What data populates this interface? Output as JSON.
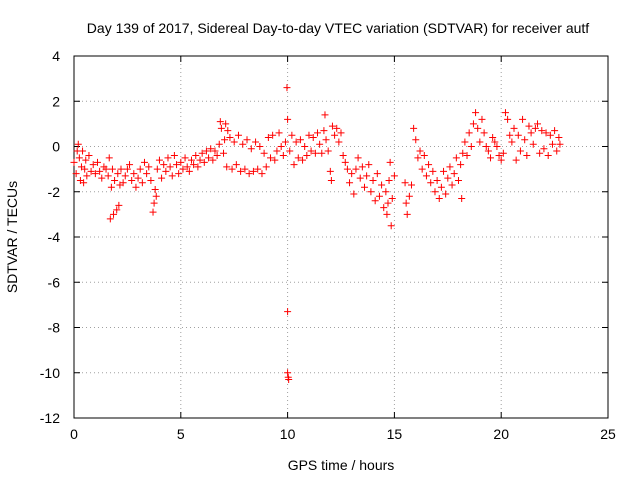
{
  "chart_data": {
    "type": "scatter",
    "title": "Day 139 of 2017, Sidereal Day-to-day VTEC variation (SDTVAR) for receiver autf",
    "xlabel": "GPS time / hours",
    "ylabel": "SDTVAR / TECUs",
    "xlim": [
      0,
      25
    ],
    "ylim": [
      -12,
      4
    ],
    "xticks": [
      0,
      5,
      10,
      15,
      20,
      25
    ],
    "yticks": [
      -12,
      -10,
      -8,
      -6,
      -4,
      -2,
      0,
      2,
      4
    ],
    "grid": true,
    "marker": "+",
    "color": "#ff0000",
    "series": [
      {
        "name": "SDTVAR",
        "points": [
          [
            0.0,
            -0.7
          ],
          [
            0.1,
            -1.2
          ],
          [
            0.15,
            -0.2
          ],
          [
            0.2,
            0.1
          ],
          [
            0.25,
            -0.5
          ],
          [
            0.3,
            -1.5
          ],
          [
            0.35,
            -0.9
          ],
          [
            0.4,
            -0.2
          ],
          [
            0.45,
            -1.6
          ],
          [
            0.5,
            -1.0
          ],
          [
            0.55,
            -0.6
          ],
          [
            0.6,
            -1.3
          ],
          [
            0.7,
            -0.4
          ],
          [
            0.8,
            -1.1
          ],
          [
            0.9,
            -0.8
          ],
          [
            1.0,
            -1.2
          ],
          [
            1.1,
            -0.7
          ],
          [
            1.2,
            -1.1
          ],
          [
            1.3,
            -1.4
          ],
          [
            1.4,
            -0.9
          ],
          [
            1.5,
            -1.0
          ],
          [
            1.6,
            -1.3
          ],
          [
            1.65,
            -0.5
          ],
          [
            1.7,
            -3.2
          ],
          [
            1.75,
            -1.8
          ],
          [
            1.8,
            -1.0
          ],
          [
            1.85,
            -3.0
          ],
          [
            1.9,
            -1.5
          ],
          [
            2.0,
            -2.8
          ],
          [
            2.05,
            -1.2
          ],
          [
            2.1,
            -2.6
          ],
          [
            2.15,
            -1.7
          ],
          [
            2.2,
            -1.0
          ],
          [
            2.3,
            -1.6
          ],
          [
            2.4,
            -1.3
          ],
          [
            2.5,
            -1.0
          ],
          [
            2.6,
            -0.8
          ],
          [
            2.7,
            -1.5
          ],
          [
            2.8,
            -1.2
          ],
          [
            2.9,
            -1.8
          ],
          [
            3.0,
            -1.4
          ],
          [
            3.1,
            -1.0
          ],
          [
            3.2,
            -1.6
          ],
          [
            3.3,
            -0.7
          ],
          [
            3.4,
            -1.2
          ],
          [
            3.5,
            -0.9
          ],
          [
            3.6,
            -1.5
          ],
          [
            3.7,
            -2.9
          ],
          [
            3.75,
            -2.5
          ],
          [
            3.8,
            -1.9
          ],
          [
            3.85,
            -2.2
          ],
          [
            3.9,
            -1.0
          ],
          [
            4.0,
            -0.6
          ],
          [
            4.1,
            -1.4
          ],
          [
            4.2,
            -0.8
          ],
          [
            4.3,
            -1.1
          ],
          [
            4.4,
            -0.5
          ],
          [
            4.5,
            -0.9
          ],
          [
            4.6,
            -1.3
          ],
          [
            4.7,
            -0.4
          ],
          [
            4.8,
            -0.8
          ],
          [
            4.9,
            -1.2
          ],
          [
            5.0,
            -0.7
          ],
          [
            5.1,
            -1.0
          ],
          [
            5.2,
            -0.5
          ],
          [
            5.3,
            -0.9
          ],
          [
            5.4,
            -1.1
          ],
          [
            5.5,
            -0.6
          ],
          [
            5.6,
            -0.8
          ],
          [
            5.7,
            -0.4
          ],
          [
            5.8,
            -0.9
          ],
          [
            5.9,
            -0.6
          ],
          [
            6.0,
            -0.3
          ],
          [
            6.1,
            -0.7
          ],
          [
            6.2,
            -0.2
          ],
          [
            6.3,
            -0.5
          ],
          [
            6.4,
            -0.1
          ],
          [
            6.5,
            -0.6
          ],
          [
            6.6,
            -0.2
          ],
          [
            6.7,
            -0.4
          ],
          [
            6.8,
            0.1
          ],
          [
            6.85,
            1.1
          ],
          [
            6.9,
            0.8
          ],
          [
            7.0,
            -0.3
          ],
          [
            7.05,
            0.3
          ],
          [
            7.1,
            1.0
          ],
          [
            7.15,
            -0.9
          ],
          [
            7.2,
            0.7
          ],
          [
            7.3,
            0.4
          ],
          [
            7.4,
            -1.0
          ],
          [
            7.5,
            0.2
          ],
          [
            7.6,
            -0.8
          ],
          [
            7.7,
            0.5
          ],
          [
            7.8,
            -1.1
          ],
          [
            7.9,
            0.1
          ],
          [
            8.0,
            -1.0
          ],
          [
            8.1,
            0.3
          ],
          [
            8.2,
            -1.2
          ],
          [
            8.3,
            -0.1
          ],
          [
            8.4,
            -1.1
          ],
          [
            8.5,
            0.2
          ],
          [
            8.6,
            -1.0
          ],
          [
            8.7,
            0.0
          ],
          [
            8.8,
            -1.2
          ],
          [
            8.9,
            -0.3
          ],
          [
            9.0,
            -0.9
          ],
          [
            9.1,
            0.4
          ],
          [
            9.2,
            -0.5
          ],
          [
            9.3,
            0.5
          ],
          [
            9.4,
            -0.6
          ],
          [
            9.5,
            -0.2
          ],
          [
            9.6,
            0.6
          ],
          [
            9.7,
            0.0
          ],
          [
            9.8,
            -0.4
          ],
          [
            9.9,
            0.2
          ],
          [
            9.97,
            2.6
          ],
          [
            10.0,
            1.2
          ],
          [
            10.0,
            -7.3
          ],
          [
            10.0,
            -10.0
          ],
          [
            10.03,
            -10.2
          ],
          [
            10.05,
            -10.3
          ],
          [
            10.1,
            -0.2
          ],
          [
            10.2,
            0.5
          ],
          [
            10.3,
            -0.8
          ],
          [
            10.4,
            0.2
          ],
          [
            10.5,
            -0.5
          ],
          [
            10.6,
            0.3
          ],
          [
            10.7,
            -0.6
          ],
          [
            10.8,
            0.0
          ],
          [
            10.9,
            -0.4
          ],
          [
            11.0,
            0.5
          ],
          [
            11.1,
            -0.2
          ],
          [
            11.2,
            0.4
          ],
          [
            11.3,
            -0.3
          ],
          [
            11.4,
            0.6
          ],
          [
            11.5,
            0.1
          ],
          [
            11.6,
            -0.3
          ],
          [
            11.7,
            0.7
          ],
          [
            11.75,
            1.4
          ],
          [
            11.8,
            0.3
          ],
          [
            11.9,
            -0.2
          ],
          [
            12.0,
            -1.1
          ],
          [
            12.05,
            -1.5
          ],
          [
            12.1,
            0.9
          ],
          [
            12.2,
            0.5
          ],
          [
            12.3,
            0.8
          ],
          [
            12.4,
            0.2
          ],
          [
            12.5,
            0.6
          ],
          [
            12.6,
            -0.4
          ],
          [
            12.7,
            -0.7
          ],
          [
            12.8,
            -1.0
          ],
          [
            12.9,
            -1.6
          ],
          [
            13.0,
            -1.2
          ],
          [
            13.1,
            -2.1
          ],
          [
            13.2,
            -1.0
          ],
          [
            13.3,
            -0.5
          ],
          [
            13.4,
            -1.4
          ],
          [
            13.5,
            -0.9
          ],
          [
            13.6,
            -1.8
          ],
          [
            13.7,
            -1.3
          ],
          [
            13.8,
            -0.8
          ],
          [
            13.9,
            -2.0
          ],
          [
            14.0,
            -1.5
          ],
          [
            14.1,
            -2.4
          ],
          [
            14.2,
            -1.2
          ],
          [
            14.3,
            -2.2
          ],
          [
            14.4,
            -1.7
          ],
          [
            14.5,
            -2.7
          ],
          [
            14.6,
            -2.0
          ],
          [
            14.65,
            -3.0
          ],
          [
            14.7,
            -2.5
          ],
          [
            14.75,
            -1.5
          ],
          [
            14.8,
            -0.7
          ],
          [
            14.85,
            -3.5
          ],
          [
            14.9,
            -2.3
          ],
          [
            15.0,
            -1.3
          ],
          [
            15.5,
            -1.6
          ],
          [
            15.55,
            -2.5
          ],
          [
            15.6,
            -3.0
          ],
          [
            15.7,
            -2.2
          ],
          [
            15.8,
            -1.7
          ],
          [
            15.9,
            0.8
          ],
          [
            16.0,
            0.3
          ],
          [
            16.1,
            -0.5
          ],
          [
            16.2,
            -0.2
          ],
          [
            16.3,
            -1.0
          ],
          [
            16.4,
            -0.4
          ],
          [
            16.5,
            -1.3
          ],
          [
            16.6,
            -0.8
          ],
          [
            16.7,
            -1.6
          ],
          [
            16.8,
            -1.1
          ],
          [
            16.9,
            -2.0
          ],
          [
            17.0,
            -1.5
          ],
          [
            17.1,
            -2.3
          ],
          [
            17.2,
            -1.8
          ],
          [
            17.3,
            -1.1
          ],
          [
            17.4,
            -2.1
          ],
          [
            17.5,
            -1.4
          ],
          [
            17.6,
            -0.9
          ],
          [
            17.7,
            -1.7
          ],
          [
            17.8,
            -1.2
          ],
          [
            17.9,
            -0.5
          ],
          [
            18.0,
            -1.5
          ],
          [
            18.1,
            -0.8
          ],
          [
            18.15,
            -2.3
          ],
          [
            18.2,
            -0.3
          ],
          [
            18.3,
            0.2
          ],
          [
            18.4,
            -0.4
          ],
          [
            18.5,
            0.6
          ],
          [
            18.6,
            0.0
          ],
          [
            18.7,
            1.0
          ],
          [
            18.8,
            1.5
          ],
          [
            18.9,
            0.8
          ],
          [
            19.0,
            0.2
          ],
          [
            19.1,
            1.2
          ],
          [
            19.2,
            0.6
          ],
          [
            19.3,
            0.0
          ],
          [
            19.4,
            -0.2
          ],
          [
            19.5,
            -0.5
          ],
          [
            19.6,
            0.4
          ],
          [
            19.7,
            0.2
          ],
          [
            19.8,
            0.0
          ],
          [
            19.9,
            -0.4
          ],
          [
            20.0,
            -0.6
          ],
          [
            20.1,
            -0.3
          ],
          [
            20.2,
            1.5
          ],
          [
            20.3,
            1.2
          ],
          [
            20.4,
            0.5
          ],
          [
            20.5,
            0.2
          ],
          [
            20.6,
            0.8
          ],
          [
            20.7,
            -0.6
          ],
          [
            20.8,
            0.5
          ],
          [
            20.9,
            -0.2
          ],
          [
            21.0,
            1.2
          ],
          [
            21.1,
            0.3
          ],
          [
            21.2,
            -0.4
          ],
          [
            21.3,
            0.9
          ],
          [
            21.4,
            0.6
          ],
          [
            21.5,
            0.1
          ],
          [
            21.6,
            0.8
          ],
          [
            21.7,
            1.0
          ],
          [
            21.8,
            -0.3
          ],
          [
            21.9,
            0.7
          ],
          [
            22.0,
            -0.1
          ],
          [
            22.1,
            0.6
          ],
          [
            22.2,
            -0.4
          ],
          [
            22.3,
            0.5
          ],
          [
            22.4,
            0.1
          ],
          [
            22.5,
            0.7
          ],
          [
            22.6,
            -0.2
          ],
          [
            22.7,
            0.4
          ],
          [
            22.75,
            0.1
          ]
        ]
      }
    ]
  }
}
